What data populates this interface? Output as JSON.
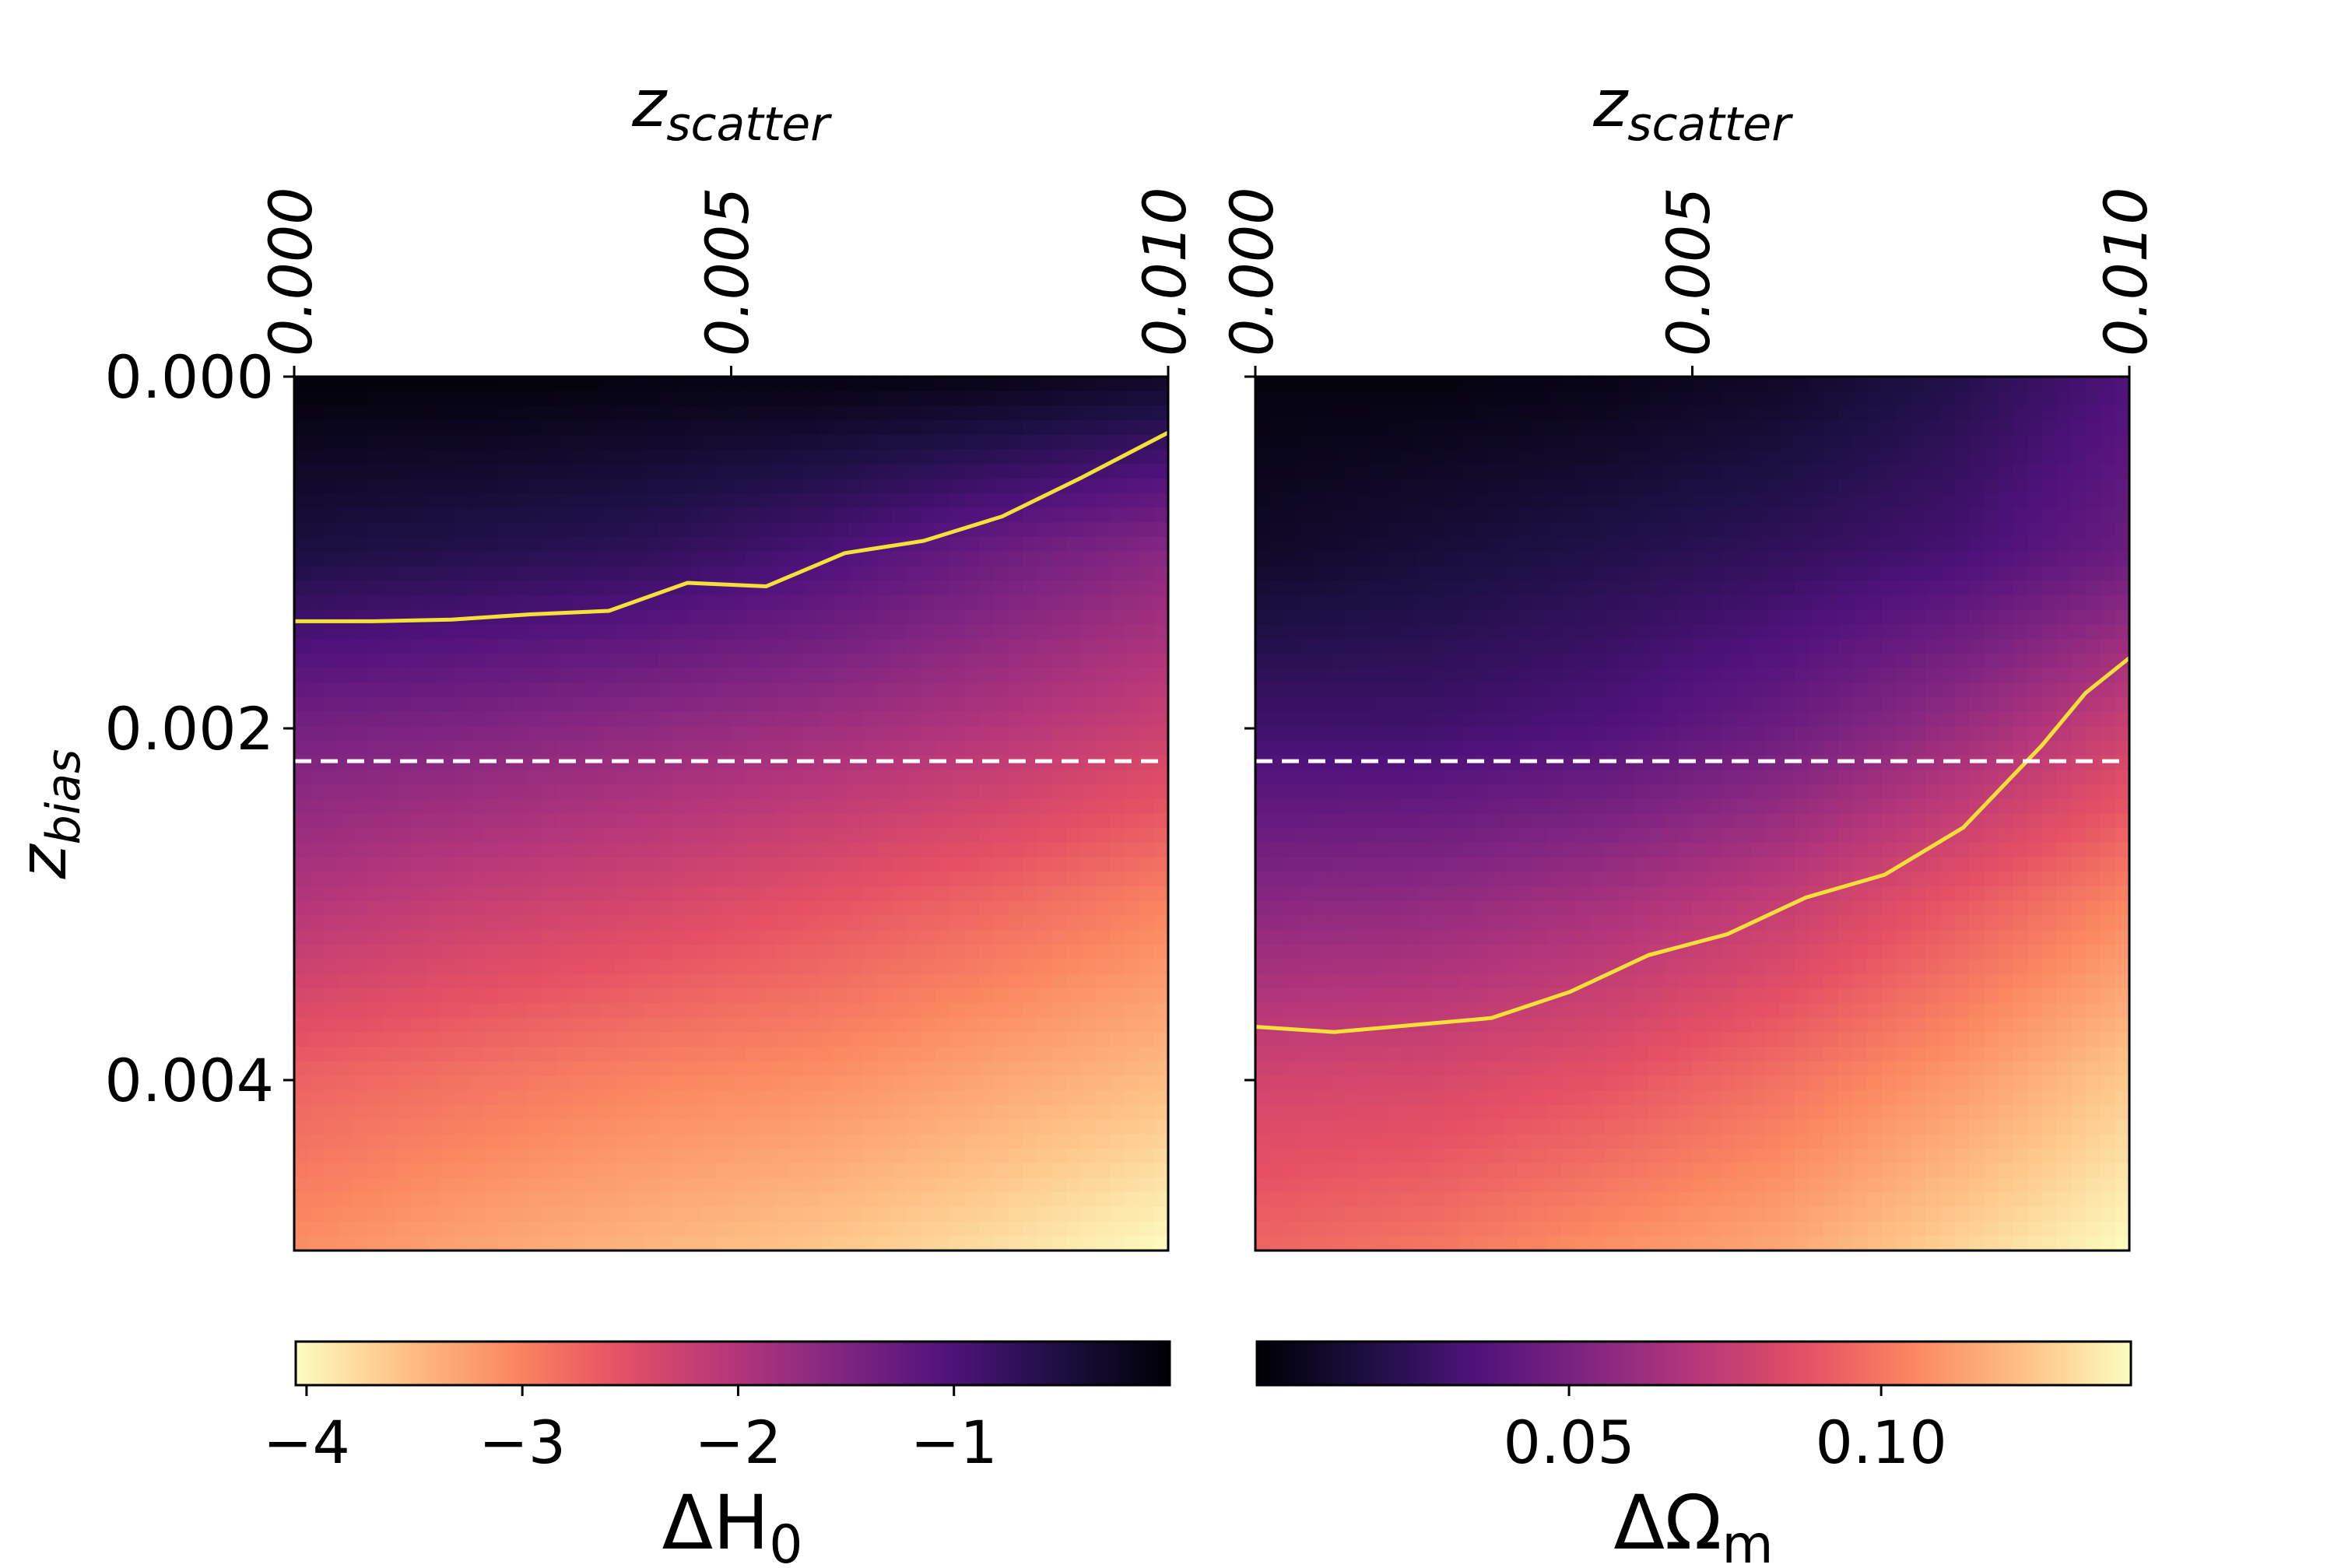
{
  "chart_data": [
    {
      "type": "heatmap",
      "panel": "left",
      "x_label_base": "z",
      "x_label_sub": "scatter",
      "x_axis_position": "top",
      "x_ticks": [
        "0.000",
        "0.005",
        "0.010"
      ],
      "x_tick_values": [
        0.0,
        0.005,
        0.01
      ],
      "xlim": [
        0.0,
        0.01
      ],
      "y_label_base": "z",
      "y_label_sub": "bias",
      "y_ticks": [
        "0.000",
        "0.002",
        "0.004"
      ],
      "y_tick_values": [
        0.0,
        0.002,
        0.004
      ],
      "ylim": [
        0.0,
        0.005
      ],
      "y_inverted": true,
      "colormap": "magma",
      "colormap_reversed": true,
      "colorbar_label_base": "ΔH",
      "colorbar_label_sub": "0",
      "colorbar_placement": "bottom",
      "colorbar_range": [
        -4.05,
        0.0
      ],
      "colorbar_ticks": [
        "−4",
        "−3",
        "−2",
        "−1"
      ],
      "colorbar_tick_values": [
        -4,
        -3,
        -2,
        -1
      ],
      "z_grid_cols": [
        0.0,
        0.002,
        0.004,
        0.006,
        0.008,
        0.01
      ],
      "z_grid_rows": [
        0.0,
        0.001,
        0.002,
        0.003,
        0.004,
        0.005
      ],
      "z_values": [
        [
          -0.05,
          -0.05,
          -0.1,
          -0.1,
          -0.15,
          -0.3
        ],
        [
          -0.5,
          -0.6,
          -0.7,
          -0.95,
          -1.3,
          -1.6
        ],
        [
          -1.4,
          -1.5,
          -1.65,
          -1.8,
          -2.0,
          -2.25
        ],
        [
          -2.0,
          -2.2,
          -2.35,
          -2.55,
          -2.75,
          -3.0
        ],
        [
          -2.7,
          -2.85,
          -3.0,
          -3.1,
          -3.3,
          -3.5
        ],
        [
          -3.1,
          -3.3,
          -3.45,
          -3.6,
          -3.8,
          -4.05
        ]
      ],
      "contour_line": {
        "color": "#f5e03a",
        "x": [
          0.0,
          0.0009,
          0.0018,
          0.0027,
          0.0036,
          0.0045,
          0.0054,
          0.0063,
          0.0072,
          0.0081,
          0.009,
          0.0095,
          0.01
        ],
        "y": [
          0.0014,
          0.0014,
          0.00139,
          0.00136,
          0.00134,
          0.00118,
          0.0012,
          0.00101,
          0.00094,
          0.0008,
          0.00058,
          0.00045,
          0.00032
        ]
      },
      "reference_line": {
        "y": 0.0022,
        "style": "dashed",
        "color": "#ffffff"
      }
    },
    {
      "type": "heatmap",
      "panel": "right",
      "x_label_base": "z",
      "x_label_sub": "scatter",
      "x_axis_position": "top",
      "x_ticks": [
        "0.000",
        "0.005",
        "0.010"
      ],
      "x_tick_values": [
        0.0,
        0.005,
        0.01
      ],
      "xlim": [
        0.0,
        0.01
      ],
      "y_ticks_labelled": false,
      "y_tick_values": [
        0.0,
        0.002,
        0.004
      ],
      "ylim": [
        0.0,
        0.005
      ],
      "y_inverted": true,
      "colormap": "magma",
      "colormap_reversed": false,
      "colorbar_label_base": "ΔΩ",
      "colorbar_label_sub": "m",
      "colorbar_placement": "bottom",
      "colorbar_range": [
        0.0,
        0.14
      ],
      "colorbar_ticks": [
        "0.05",
        "0.10"
      ],
      "colorbar_tick_values": [
        0.05,
        0.1
      ],
      "z_grid_cols": [
        0.0,
        0.002,
        0.004,
        0.006,
        0.008,
        0.01
      ],
      "z_grid_rows": [
        0.0,
        0.001,
        0.002,
        0.003,
        0.004,
        0.005
      ],
      "z_values": [
        [
          0.003,
          0.003,
          0.005,
          0.01,
          0.02,
          0.035
        ],
        [
          0.01,
          0.015,
          0.02,
          0.025,
          0.032,
          0.045
        ],
        [
          0.03,
          0.03,
          0.035,
          0.045,
          0.06,
          0.078
        ],
        [
          0.055,
          0.058,
          0.065,
          0.075,
          0.09,
          0.105
        ],
        [
          0.08,
          0.082,
          0.088,
          0.098,
          0.11,
          0.125
        ],
        [
          0.095,
          0.1,
          0.108,
          0.115,
          0.128,
          0.14
        ]
      ],
      "contour_line": {
        "color": "#f5e03a",
        "x": [
          0.0,
          0.0009,
          0.0018,
          0.0027,
          0.0036,
          0.0045,
          0.0054,
          0.0063,
          0.0072,
          0.0081,
          0.009,
          0.0095,
          0.01
        ],
        "y": [
          0.00372,
          0.00375,
          0.00371,
          0.00367,
          0.00352,
          0.00331,
          0.00319,
          0.00298,
          0.00285,
          0.00258,
          0.00211,
          0.00181,
          0.00161
        ]
      },
      "reference_line": {
        "y": 0.0022,
        "style": "dashed",
        "color": "#ffffff"
      }
    }
  ]
}
